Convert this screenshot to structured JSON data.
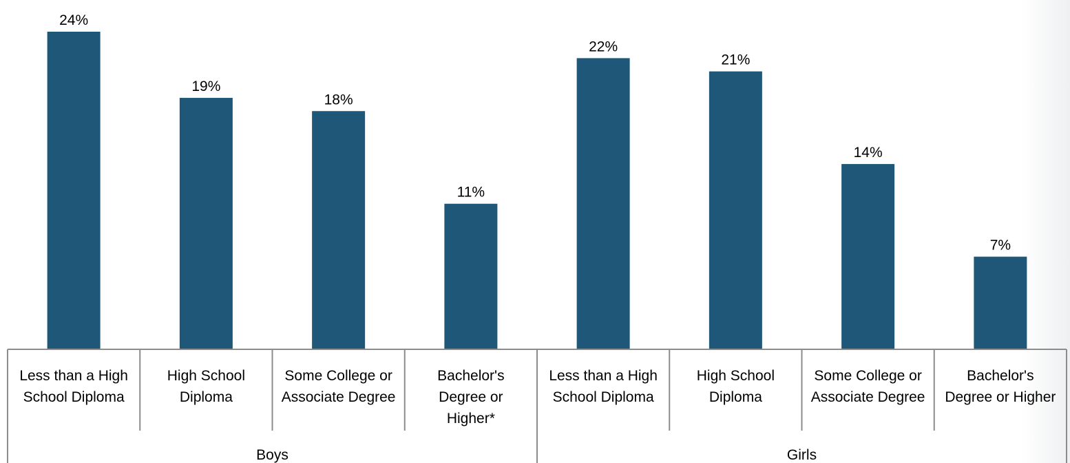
{
  "chart_data": {
    "type": "bar",
    "groups": [
      {
        "name": "Boys",
        "categories": [
          [
            "Less than a High",
            "School Diploma"
          ],
          [
            "High School",
            "Diploma"
          ],
          [
            "Some College or",
            "Associate Degree"
          ],
          [
            "Bachelor's",
            "Degree or",
            "Higher*"
          ]
        ],
        "values": [
          24,
          19,
          18,
          11
        ],
        "labels": [
          "24%",
          "19%",
          "18%",
          "11%"
        ]
      },
      {
        "name": "Girls",
        "categories": [
          [
            "Less than a High",
            "School Diploma"
          ],
          [
            "High School",
            "Diploma"
          ],
          [
            "Some College or",
            "Associate Degree"
          ],
          [
            "Bachelor's",
            "Degree or Higher"
          ]
        ],
        "values": [
          22,
          21,
          14,
          7
        ],
        "labels": [
          "22%",
          "21%",
          "14%",
          "7%"
        ]
      }
    ],
    "ylim": [
      0,
      25
    ],
    "grid": false,
    "colors": {
      "bar": "#1f5778",
      "axis": "#8c8c8c",
      "text": "#000000"
    }
  }
}
